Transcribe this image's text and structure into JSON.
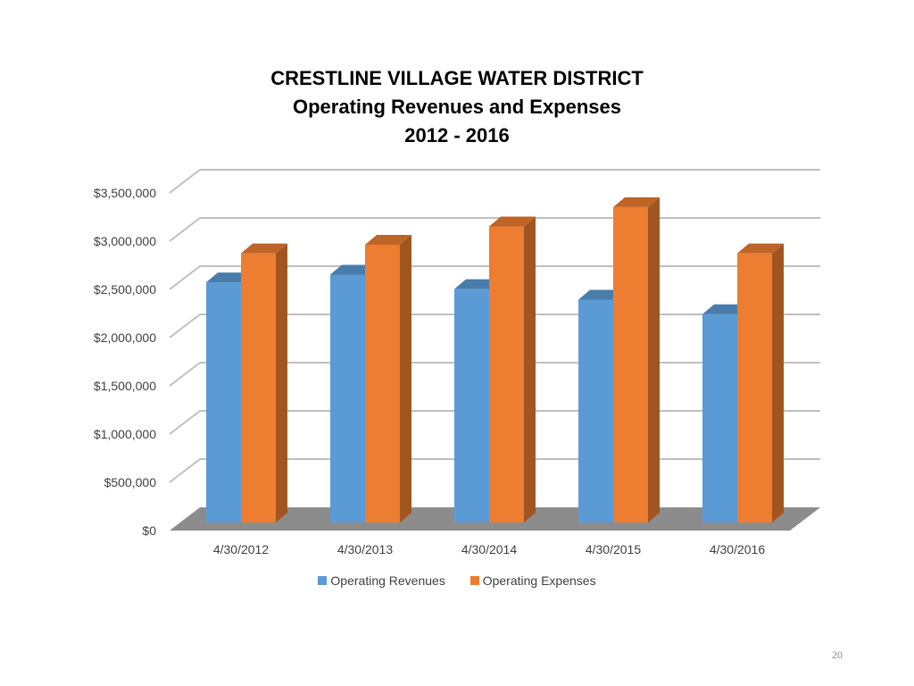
{
  "title_lines": [
    "CRESTLINE VILLAGE WATER DISTRICT",
    "Operating Revenues and Expenses",
    "2012 - 2016"
  ],
  "page_number": "20",
  "chart_data": {
    "type": "bar",
    "title": "CRESTLINE VILLAGE WATER DISTRICT Operating Revenues and Expenses 2012 - 2016",
    "categories": [
      "4/30/2012",
      "4/30/2013",
      "4/30/2014",
      "4/30/2015",
      "4/30/2016"
    ],
    "series": [
      {
        "name": "Operating Revenues",
        "color": "#5B9BD5",
        "values": [
          2490000,
          2570000,
          2420000,
          2310000,
          2160000
        ]
      },
      {
        "name": "Operating Expenses",
        "color": "#ED7D31",
        "values": [
          2790000,
          2880000,
          3070000,
          3270000,
          2790000
        ]
      }
    ],
    "ylim": [
      0,
      3500000
    ],
    "yticks": [
      0,
      500000,
      1000000,
      1500000,
      2000000,
      2500000,
      3000000,
      3500000
    ],
    "ytick_labels": [
      "$0",
      "$500,000",
      "$1,000,000",
      "$1,500,000",
      "$2,000,000",
      "$2,500,000",
      "$3,000,000",
      "$3,500,000"
    ],
    "grid": true,
    "legend_position": "bottom",
    "style": "3d-clustered-column"
  }
}
